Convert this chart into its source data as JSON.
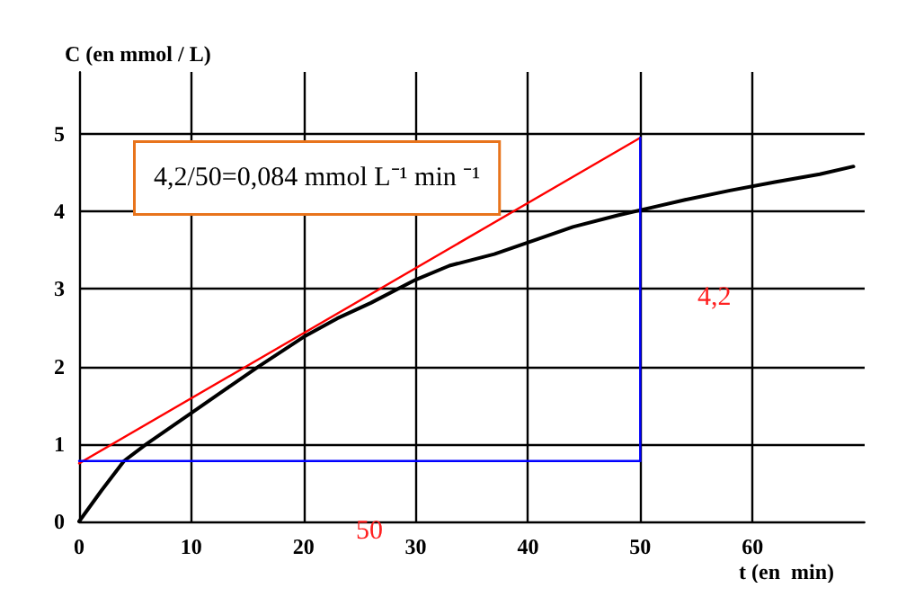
{
  "chart_data": {
    "type": "line",
    "xlabel": "t (en  min)",
    "ylabel": "C (en mmol / L)",
    "xlim": [
      0,
      70
    ],
    "ylim": [
      0,
      5.8
    ],
    "xticks": [
      0,
      10,
      20,
      30,
      40,
      50,
      60
    ],
    "yticks": [
      0,
      1,
      2,
      3,
      4,
      5
    ],
    "grid": true,
    "series": [
      {
        "color": "#000000",
        "x": [
          0,
          2,
          4,
          6,
          8,
          10,
          13,
          16,
          20,
          23,
          26,
          30,
          33,
          37,
          41,
          44,
          48,
          51,
          54,
          58,
          62,
          66,
          69
        ],
        "values": [
          0,
          0.4,
          0.78,
          1.0,
          1.2,
          1.4,
          1.7,
          2.0,
          2.38,
          2.62,
          2.82,
          3.12,
          3.3,
          3.45,
          3.65,
          3.8,
          3.95,
          4.05,
          4.15,
          4.27,
          4.38,
          4.48,
          4.58
        ]
      },
      {
        "color": "#ff0000",
        "x": [
          0,
          50
        ],
        "values": [
          0.75,
          4.95
        ]
      },
      {
        "color": "#0000ff",
        "x": [
          0,
          50
        ],
        "values": [
          0.78,
          0.78
        ]
      },
      {
        "color": "#0000ff",
        "x": [
          50,
          50
        ],
        "values": [
          0.78,
          4.95
        ]
      }
    ],
    "annotations": [
      "4,2/50=0,084 mmol L⁻¹ min ⁻¹",
      "50",
      "4,2"
    ]
  }
}
